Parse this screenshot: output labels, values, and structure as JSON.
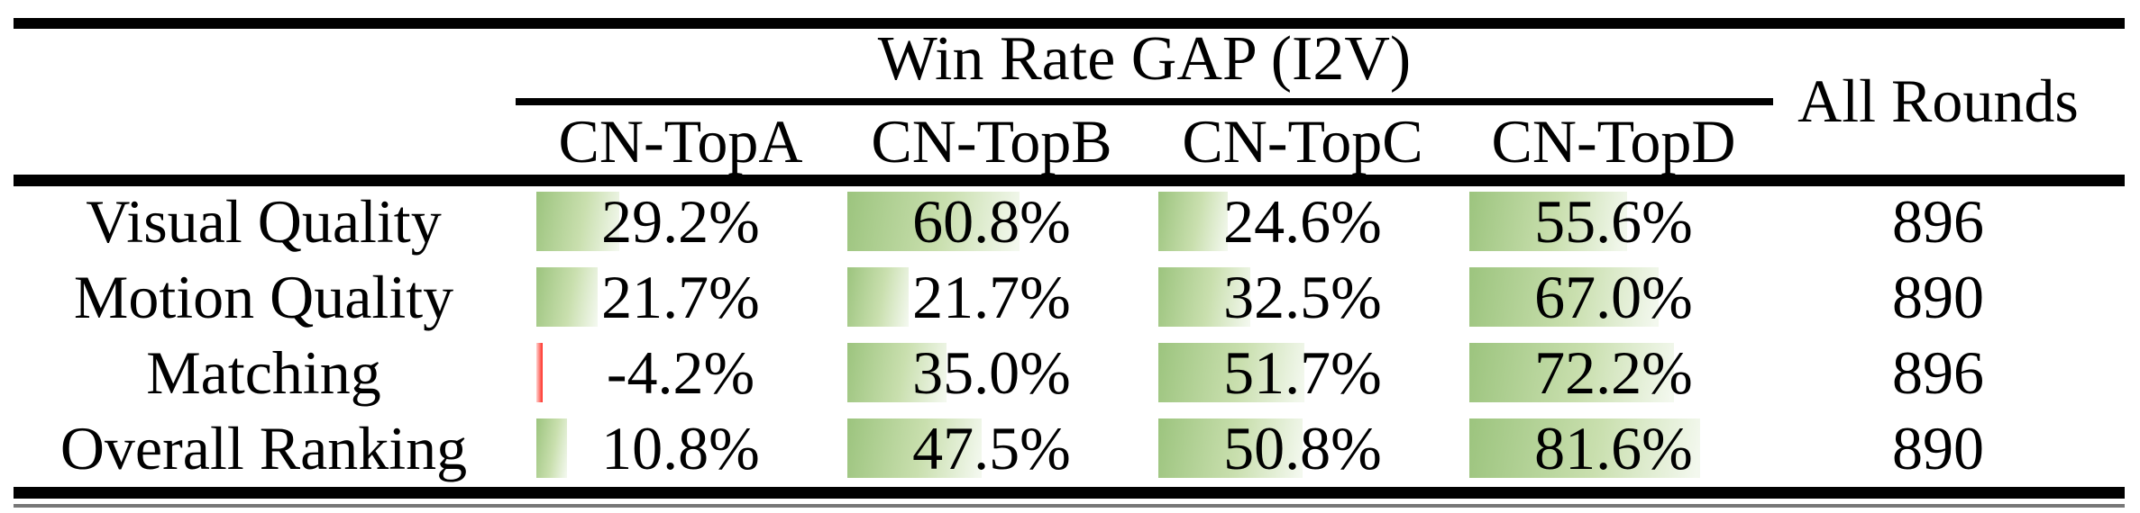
{
  "table": {
    "group_header": "Win Rate GAP (I2V)",
    "all_rounds_header": "All Rounds",
    "columns": [
      "CN-TopA",
      "CN-TopB",
      "CN-TopC",
      "CN-TopD"
    ],
    "rows": [
      {
        "label": "Visual Quality",
        "values": [
          29.2,
          60.8,
          24.6,
          55.6
        ],
        "display": [
          "29.2%",
          "60.8%",
          "24.6%",
          "55.6%"
        ],
        "all_rounds": "896"
      },
      {
        "label": "Motion Quality",
        "values": [
          21.7,
          21.7,
          32.5,
          67.0
        ],
        "display": [
          "21.7%",
          "21.7%",
          "32.5%",
          "67.0%"
        ],
        "all_rounds": "890"
      },
      {
        "label": "Matching",
        "values": [
          -4.2,
          35.0,
          51.7,
          72.2
        ],
        "display": [
          "-4.2%",
          "35.0%",
          "51.7%",
          "72.2%"
        ],
        "all_rounds": "896"
      },
      {
        "label": "Overall Ranking",
        "values": [
          10.8,
          47.5,
          50.8,
          81.6
        ],
        "display": [
          "10.8%",
          "47.5%",
          "50.8%",
          "81.6%"
        ],
        "all_rounds": "890"
      }
    ],
    "colors": {
      "positive_bar_start": "#9cc47e",
      "positive_bar_end": "#f3f8ee",
      "negative_bar": "#ff2d24",
      "rule": "#000000"
    }
  },
  "chart_data": {
    "type": "table",
    "title": "Win Rate GAP (I2V)",
    "categories": [
      "Visual Quality",
      "Motion Quality",
      "Matching",
      "Overall Ranking"
    ],
    "series": [
      {
        "name": "CN-TopA",
        "values": [
          29.2,
          21.7,
          -4.2,
          10.8
        ]
      },
      {
        "name": "CN-TopB",
        "values": [
          60.8,
          21.7,
          35.0,
          47.5
        ]
      },
      {
        "name": "CN-TopC",
        "values": [
          24.6,
          32.5,
          51.7,
          50.8
        ]
      },
      {
        "name": "CN-TopD",
        "values": [
          55.6,
          67.0,
          72.2,
          81.6
        ]
      }
    ],
    "all_rounds": [
      896,
      890,
      896,
      890
    ],
    "unit": "%",
    "layout": "data bars embedded in table cells; bar length proportional to value, green gradient for positive, red sliver for negative"
  }
}
